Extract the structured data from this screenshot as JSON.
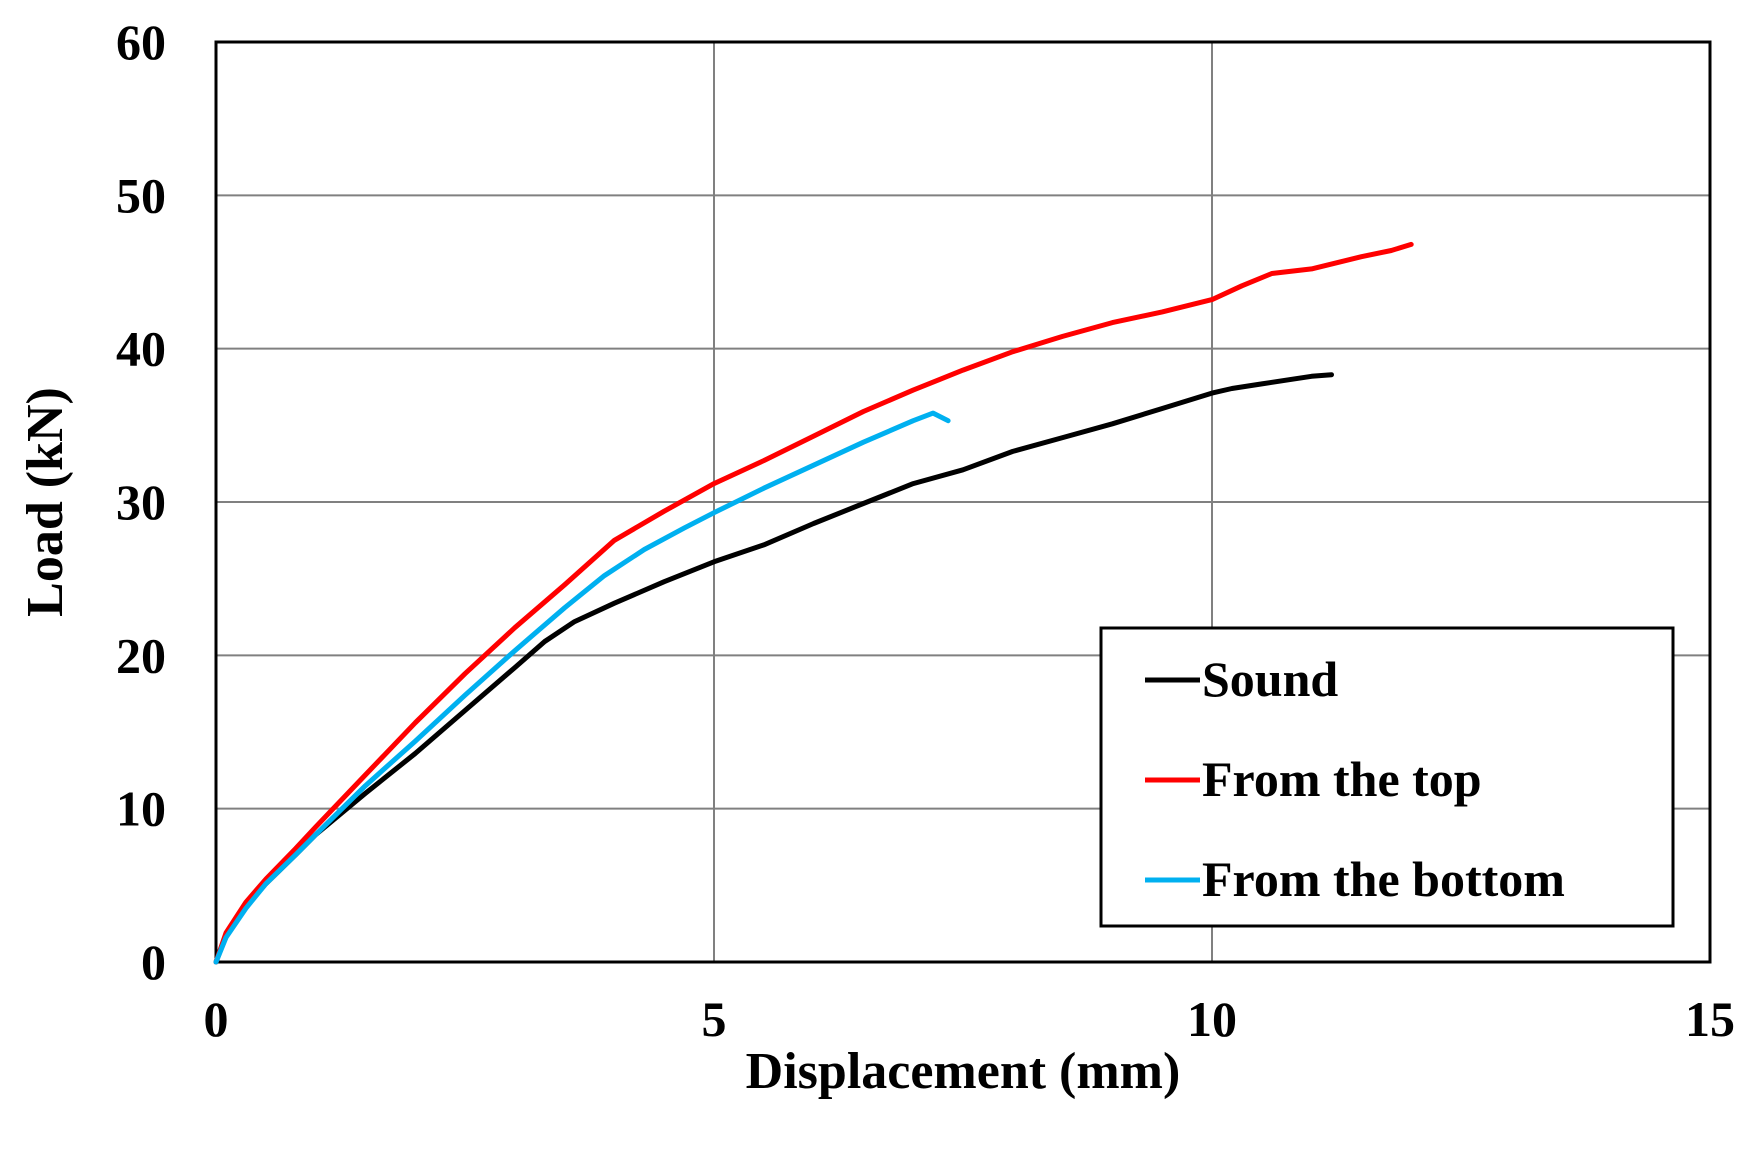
{
  "chart_data": {
    "type": "line",
    "title": "",
    "xlabel": "Displacement (mm)",
    "ylabel": "Load (kN)",
    "xlim": [
      0,
      15
    ],
    "ylim": [
      0,
      60
    ],
    "x_ticks": [
      0,
      5,
      10,
      15
    ],
    "x_tick_labels": [
      "0",
      "5",
      "10",
      "15"
    ],
    "y_ticks": [
      0,
      10,
      20,
      30,
      40,
      50,
      60
    ],
    "y_tick_labels": [
      "0",
      "10",
      "20",
      "30",
      "40",
      "50",
      "60"
    ],
    "grid": true,
    "legend_position": "bottom-right",
    "series": [
      {
        "name": "Sound",
        "color": "#000000",
        "points": [
          [
            0,
            0
          ],
          [
            0.1,
            1.7
          ],
          [
            0.3,
            3.6
          ],
          [
            0.5,
            5.1
          ],
          [
            0.8,
            7.0
          ],
          [
            1.0,
            8.3
          ],
          [
            1.5,
            11.0
          ],
          [
            2.0,
            13.6
          ],
          [
            2.5,
            16.4
          ],
          [
            3.0,
            19.2
          ],
          [
            3.3,
            20.9
          ],
          [
            3.6,
            22.2
          ],
          [
            4.0,
            23.4
          ],
          [
            4.5,
            24.8
          ],
          [
            5.0,
            26.1
          ],
          [
            5.5,
            27.2
          ],
          [
            6.0,
            28.6
          ],
          [
            6.5,
            29.9
          ],
          [
            7.0,
            31.2
          ],
          [
            7.5,
            32.1
          ],
          [
            8.0,
            33.3
          ],
          [
            8.5,
            34.2
          ],
          [
            9.0,
            35.1
          ],
          [
            9.5,
            36.1
          ],
          [
            10.0,
            37.1
          ],
          [
            10.2,
            37.4
          ],
          [
            10.5,
            37.7
          ],
          [
            10.8,
            38.0
          ],
          [
            11.0,
            38.2
          ],
          [
            11.2,
            38.3
          ]
        ]
      },
      {
        "name": "From the top",
        "color": "#ff0000",
        "points": [
          [
            0,
            0
          ],
          [
            0.1,
            1.9
          ],
          [
            0.3,
            3.9
          ],
          [
            0.5,
            5.4
          ],
          [
            0.8,
            7.4
          ],
          [
            1.0,
            8.8
          ],
          [
            1.5,
            12.2
          ],
          [
            2.0,
            15.6
          ],
          [
            2.5,
            18.8
          ],
          [
            3.0,
            21.8
          ],
          [
            3.5,
            24.6
          ],
          [
            4.0,
            27.5
          ],
          [
            4.5,
            29.4
          ],
          [
            5.0,
            31.2
          ],
          [
            5.5,
            32.7
          ],
          [
            6.0,
            34.3
          ],
          [
            6.5,
            35.9
          ],
          [
            7.0,
            37.3
          ],
          [
            7.5,
            38.6
          ],
          [
            8.0,
            39.8
          ],
          [
            8.5,
            40.8
          ],
          [
            9.0,
            41.7
          ],
          [
            9.5,
            42.4
          ],
          [
            10.0,
            43.2
          ],
          [
            10.3,
            44.1
          ],
          [
            10.6,
            44.9
          ],
          [
            11.0,
            45.2
          ],
          [
            11.5,
            46.0
          ],
          [
            11.8,
            46.4
          ],
          [
            12.0,
            46.8
          ]
        ]
      },
      {
        "name": "From the bottom",
        "color": "#00b0f0",
        "points": [
          [
            0,
            0
          ],
          [
            0.1,
            1.6
          ],
          [
            0.3,
            3.5
          ],
          [
            0.5,
            5.1
          ],
          [
            0.8,
            7.0
          ],
          [
            1.0,
            8.3
          ],
          [
            1.5,
            11.5
          ],
          [
            2.0,
            14.4
          ],
          [
            2.5,
            17.4
          ],
          [
            3.0,
            20.3
          ],
          [
            3.5,
            23.1
          ],
          [
            3.9,
            25.2
          ],
          [
            4.3,
            26.9
          ],
          [
            4.7,
            28.3
          ],
          [
            5.0,
            29.3
          ],
          [
            5.5,
            30.9
          ],
          [
            6.0,
            32.4
          ],
          [
            6.5,
            33.9
          ],
          [
            7.0,
            35.3
          ],
          [
            7.2,
            35.8
          ],
          [
            7.35,
            35.3
          ]
        ]
      }
    ]
  }
}
